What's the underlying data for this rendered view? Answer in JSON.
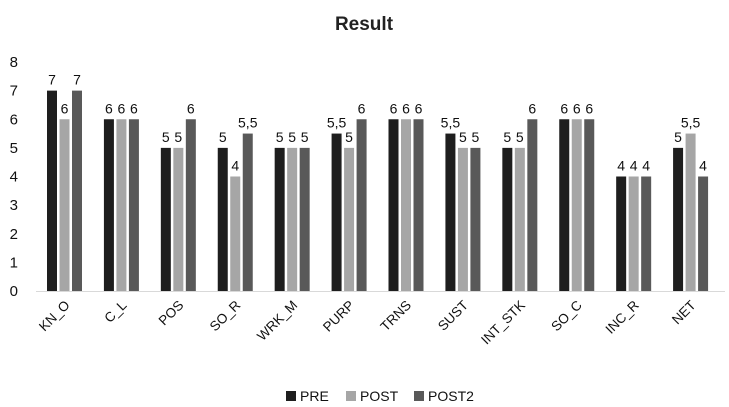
{
  "chart_data": {
    "type": "bar",
    "title": "Result",
    "xlabel": "",
    "ylabel": "",
    "ylim": [
      0,
      8
    ],
    "yticks": [
      "0",
      "1",
      "2",
      "3",
      "4",
      "5",
      "6",
      "7",
      "8"
    ],
    "grid": false,
    "legend_position": "bottom",
    "categories": [
      "KN_O",
      "C_L",
      "POS",
      "SO_R",
      "WRK_M",
      "PURP",
      "TRNS",
      "SUST",
      "INT_STK",
      "SO_C",
      "INC_R",
      "NET"
    ],
    "series": [
      {
        "name": "PRE",
        "color": "#1e1e1e",
        "values": [
          7,
          6,
          5,
          5,
          5,
          5.5,
          6,
          5.5,
          5,
          6,
          4,
          5
        ],
        "labels": [
          "7",
          "6",
          "5",
          "5",
          "5",
          "5,5",
          "6",
          "5,5",
          "5",
          "6",
          "4",
          "5"
        ]
      },
      {
        "name": "POST",
        "color": "#a6a6a6",
        "values": [
          6,
          6,
          5,
          4,
          5,
          5,
          6,
          5,
          5,
          6,
          4,
          5.5
        ],
        "labels": [
          "6",
          "6",
          "5",
          "4",
          "5",
          "5",
          "6",
          "5",
          "5",
          "6",
          "4",
          "5,5"
        ]
      },
      {
        "name": "POST2",
        "color": "#595959",
        "values": [
          7,
          6,
          6,
          5.5,
          5,
          6,
          6,
          5,
          6,
          6,
          4,
          4
        ],
        "labels": [
          "7",
          "6",
          "6",
          "5,5",
          "5",
          "6",
          "6",
          "5",
          "6",
          "6",
          "4",
          "4"
        ]
      }
    ]
  }
}
